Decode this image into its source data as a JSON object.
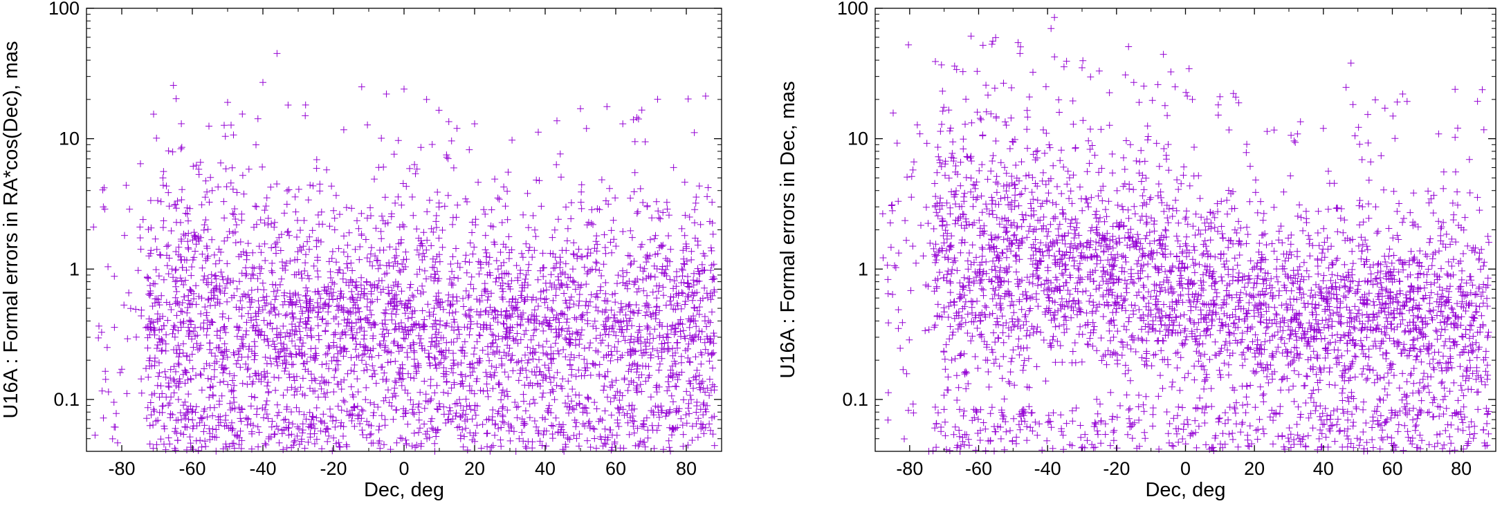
{
  "marker_color": "#9400d3",
  "chart_data": [
    {
      "type": "scatter",
      "title": "",
      "xlabel": "Dec, deg",
      "ylabel": "U16A : Formal errors in RA*cos(Dec), mas",
      "xlim": [
        -90,
        90
      ],
      "ylim": [
        0.04,
        100
      ],
      "yscale": "log",
      "x_ticks": [
        -80,
        -60,
        -40,
        -20,
        0,
        20,
        40,
        60,
        80
      ],
      "y_ticks": [
        0.1,
        1,
        10,
        100
      ],
      "y_tick_labels": [
        "0.1",
        "1",
        "10",
        "100"
      ],
      "marker": "+",
      "grid": false,
      "legend": "none",
      "notable_points": [
        {
          "x": -36,
          "y": 45
        },
        {
          "x": -40,
          "y": 27
        },
        {
          "x": -50,
          "y": 19
        },
        {
          "x": -12,
          "y": 25
        },
        {
          "x": 0,
          "y": 24
        },
        {
          "x": -5,
          "y": 22
        },
        {
          "x": 50,
          "y": 17
        },
        {
          "x": -28,
          "y": 15
        },
        {
          "x": 62,
          "y": 13
        },
        {
          "x": 65,
          "y": 14
        },
        {
          "x": 20,
          "y": 13
        },
        {
          "x": 15,
          "y": 12
        },
        {
          "x": -85,
          "y": 4.2
        },
        {
          "x": -88,
          "y": 2.1
        }
      ],
      "main_cloud": {
        "x_range": [
          -85,
          88
        ],
        "central_y": 0.35,
        "spread_decades": 0.45,
        "extends_below_ylim": true
      }
    },
    {
      "type": "scatter",
      "title": "",
      "xlabel": "Dec, deg",
      "ylabel": "U16A : Formal errors in Dec, mas",
      "xlim": [
        -90,
        90
      ],
      "ylim": [
        0.04,
        100
      ],
      "yscale": "log",
      "x_ticks": [
        -80,
        -60,
        -40,
        -20,
        0,
        20,
        40,
        60,
        80
      ],
      "y_ticks": [
        0.1,
        1,
        10,
        100
      ],
      "y_tick_labels": [
        "0.1",
        "1",
        "10",
        "100"
      ],
      "marker": "+",
      "grid": false,
      "legend": "none",
      "notable_points": [
        {
          "x": -38,
          "y": 85
        },
        {
          "x": -39,
          "y": 70
        },
        {
          "x": -48,
          "y": 45
        },
        {
          "x": -30,
          "y": 35
        },
        {
          "x": -25,
          "y": 33
        },
        {
          "x": 48,
          "y": 38
        },
        {
          "x": -15,
          "y": 27
        },
        {
          "x": -8,
          "y": 26
        },
        {
          "x": -3,
          "y": 25
        },
        {
          "x": 2,
          "y": 20
        },
        {
          "x": 10,
          "y": 21
        },
        {
          "x": 63,
          "y": 22
        },
        {
          "x": 40,
          "y": 12
        },
        {
          "x": -85,
          "y": 2.8
        }
      ],
      "main_cloud": {
        "x_range": [
          -85,
          88
        ],
        "trend": [
          [
            -40,
            1.1
          ],
          [
            -20,
            0.9
          ],
          [
            0,
            0.65
          ],
          [
            20,
            0.5
          ],
          [
            40,
            0.4
          ],
          [
            60,
            0.45
          ],
          [
            85,
            0.4
          ]
        ],
        "spread_decades": 0.4,
        "extends_below_ylim": true
      }
    }
  ]
}
